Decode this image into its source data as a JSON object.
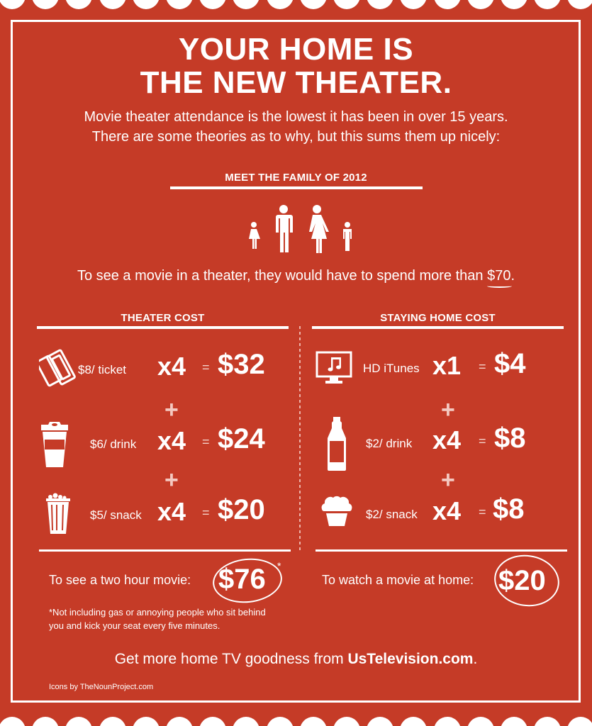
{
  "colors": {
    "background": "#c53b27",
    "foreground": "#ffffff",
    "accent_light": "#f4c8c0"
  },
  "title": {
    "line1": "YOUR HOME IS",
    "line2": "THE NEW THEATER."
  },
  "intro": {
    "line1": "Movie theater attendance is the lowest it has been in over 15 years.",
    "line2": "There are some theories as to why, but this sums them up nicely:"
  },
  "family": {
    "heading": "MEET THE FAMILY OF 2012",
    "members": [
      "girl-icon",
      "man-icon",
      "woman-icon",
      "boy-icon"
    ],
    "spend_prefix": "To see a movie in a theater, they would have to spend more than ",
    "spend_amount": "$70",
    "spend_suffix": "."
  },
  "theater": {
    "heading": "THEATER COST",
    "items": [
      {
        "icon": "ticket-icon",
        "unit": "$8/ ticket",
        "mult": "x4",
        "eq": "=",
        "total": "$32"
      },
      {
        "icon": "coffee-cup-icon",
        "unit": "$6/ drink",
        "mult": "x4",
        "eq": "=",
        "total": "$24"
      },
      {
        "icon": "popcorn-bucket-icon",
        "unit": "$5/ snack",
        "mult": "x4",
        "eq": "=",
        "total": "$20"
      }
    ],
    "plus": "+",
    "summary_label": "To see a two hour movie:",
    "summary_total": "$76",
    "asterisk": "*",
    "footnote_line1": "*Not including gas or annoying people who sit behind",
    "footnote_line2": "you and kick your seat every five minutes."
  },
  "home": {
    "heading": "STAYING HOME COST",
    "items": [
      {
        "icon": "monitor-music-icon",
        "unit": "HD iTunes",
        "mult": "x1",
        "eq": "=",
        "total": "$4"
      },
      {
        "icon": "bottle-icon",
        "unit": "$2/ drink",
        "mult": "x4",
        "eq": "=",
        "total": "$8"
      },
      {
        "icon": "cupcake-icon",
        "unit": "$2/ snack",
        "mult": "x4",
        "eq": "=",
        "total": "$8"
      }
    ],
    "plus": "+",
    "summary_label": "To watch a movie at home:",
    "summary_total": "$20"
  },
  "footer": {
    "cta_prefix": "Get more home TV goodness from ",
    "cta_site": "UsTelevision.com",
    "cta_suffix": ".",
    "credit": "Icons by TheNounProject.com"
  }
}
